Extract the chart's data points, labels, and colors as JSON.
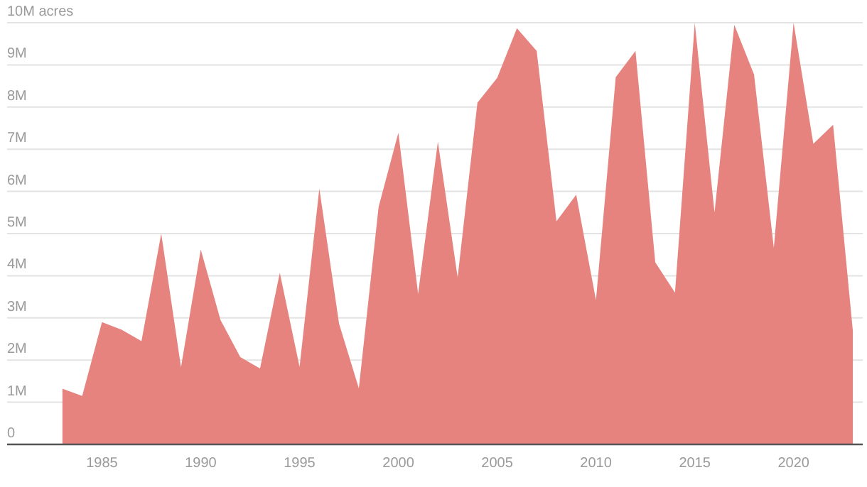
{
  "chart_data": {
    "type": "area",
    "x": [
      1983,
      1984,
      1985,
      1986,
      1987,
      1988,
      1989,
      1990,
      1991,
      1992,
      1993,
      1994,
      1995,
      1996,
      1997,
      1998,
      1999,
      2000,
      2001,
      2002,
      2003,
      2004,
      2005,
      2006,
      2007,
      2008,
      2009,
      2010,
      2011,
      2012,
      2013,
      2014,
      2015,
      2016,
      2017,
      2018,
      2019,
      2020,
      2021,
      2022,
      2023
    ],
    "series": [
      {
        "color": "#e6837f",
        "values": [
          1.32,
          1.15,
          2.9,
          2.72,
          2.45,
          5.0,
          1.83,
          4.62,
          2.95,
          2.07,
          1.8,
          4.07,
          1.84,
          6.07,
          2.86,
          1.33,
          5.63,
          7.39,
          3.57,
          7.18,
          3.96,
          8.1,
          8.69,
          9.87,
          9.33,
          5.29,
          5.92,
          3.42,
          8.71,
          9.33,
          4.32,
          3.6,
          10.0,
          5.5,
          9.95,
          8.77,
          4.66,
          10.0,
          7.13,
          7.58,
          2.69
        ]
      }
    ],
    "xlim": [
      1980.2,
      2023.5
    ],
    "xticks": [
      1985,
      1990,
      1995,
      2000,
      2005,
      2010,
      2015,
      2020
    ],
    "ylim": [
      0,
      10
    ],
    "yticks": [
      0,
      {
        "value": 1,
        "label": "1M"
      },
      {
        "value": 2,
        "label": "2M"
      },
      {
        "value": 3,
        "label": "3M"
      },
      {
        "value": 4,
        "label": "4M"
      },
      {
        "value": 5,
        "label": "5M"
      },
      {
        "value": 6,
        "label": "6M"
      },
      {
        "value": 7,
        "label": "7M"
      },
      {
        "value": 8,
        "label": "8M"
      },
      {
        "value": 9,
        "label": "9M"
      },
      {
        "value": 10,
        "label": "10M acres"
      }
    ],
    "grid": "y"
  }
}
